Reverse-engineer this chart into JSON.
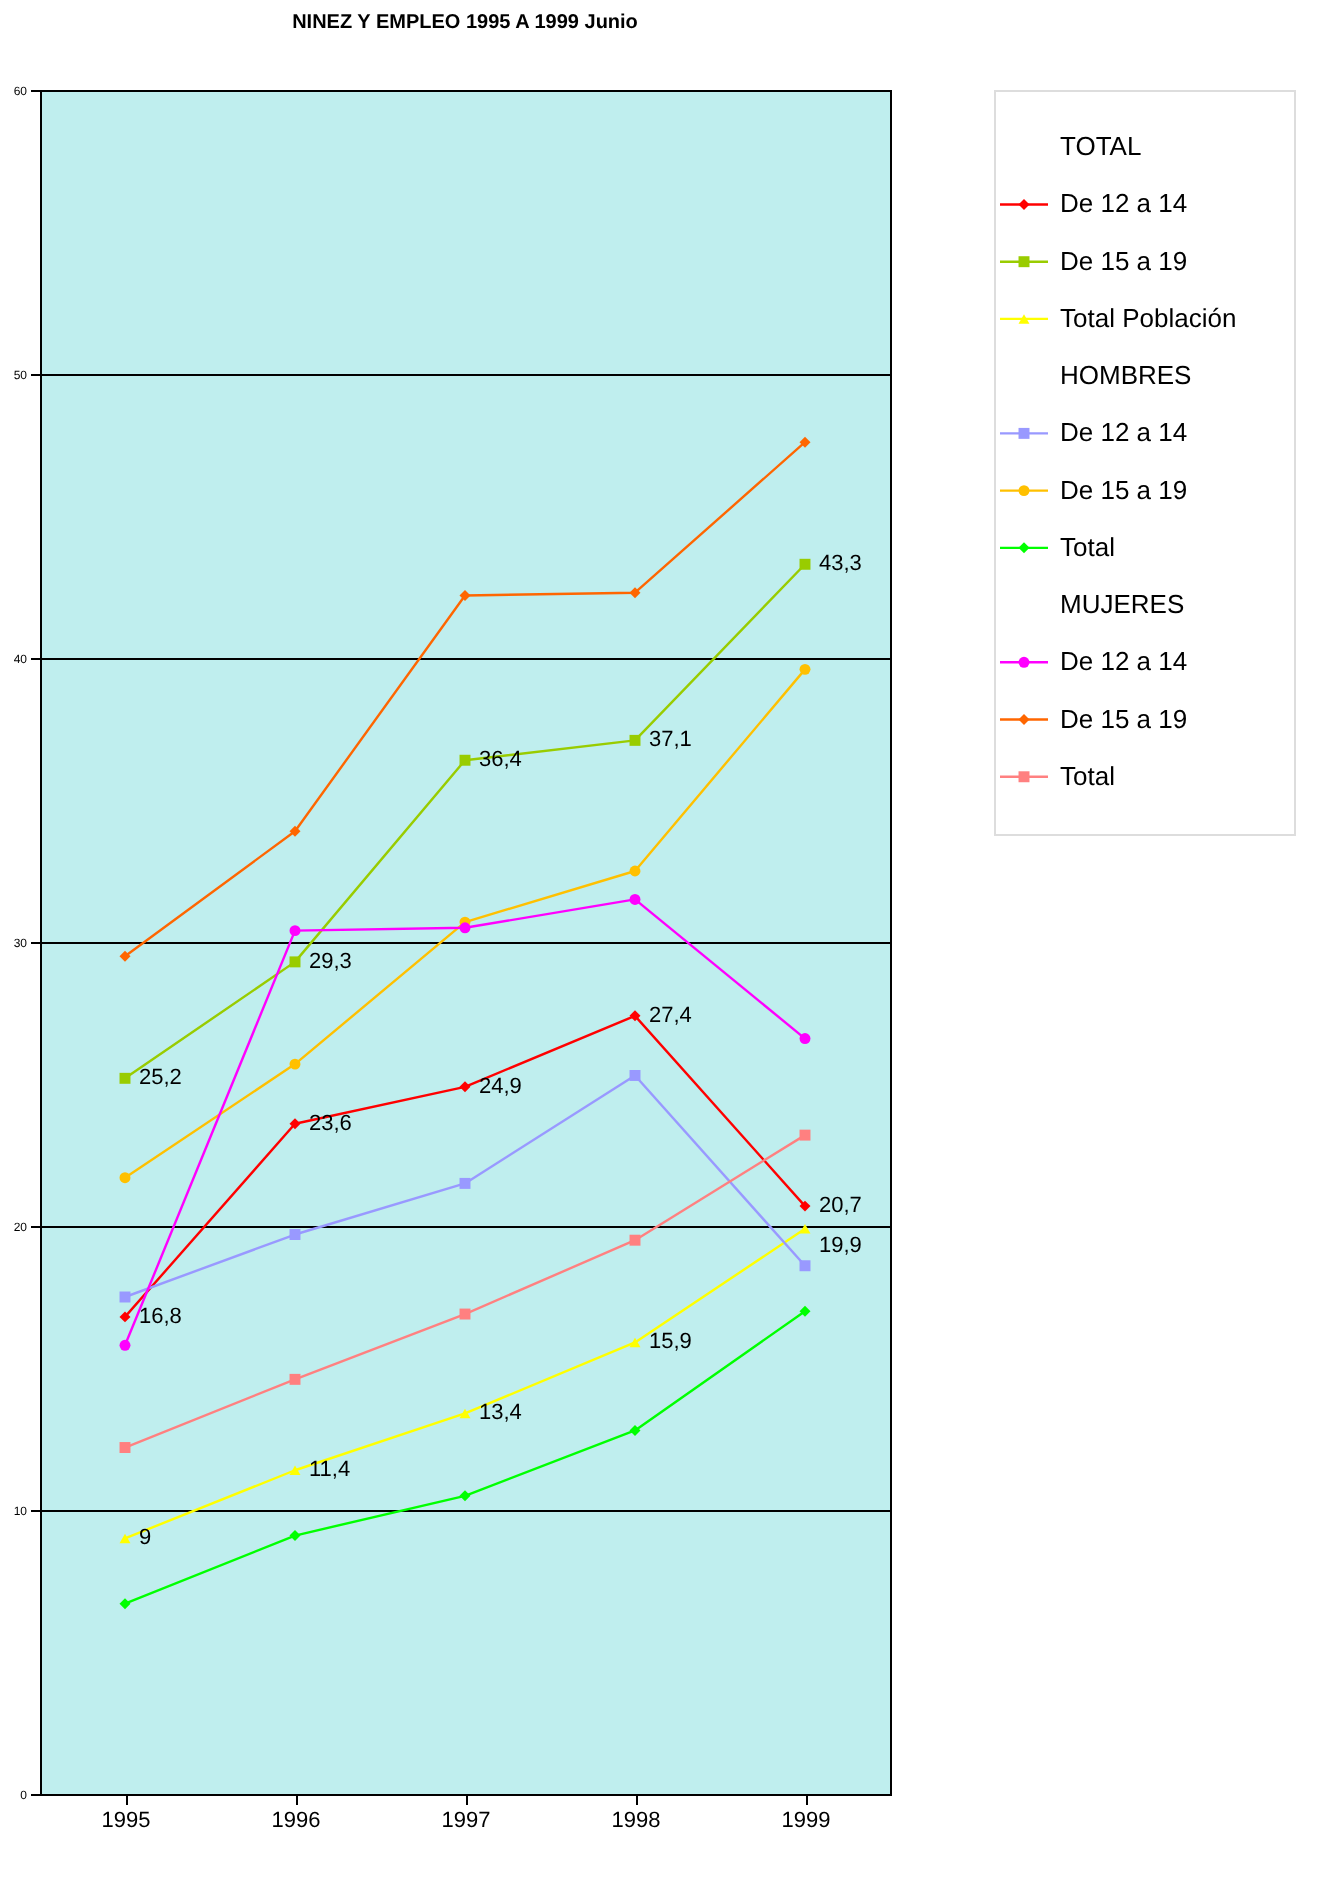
{
  "chart_data": {
    "type": "line",
    "title": "NINEZ Y EMPLEO 1995 A 1999 Junio",
    "categories": [
      "1995",
      "1996",
      "1997",
      "1998",
      "1999"
    ],
    "ylim": [
      0,
      60
    ],
    "yticks": [
      0,
      10,
      20,
      30,
      40,
      50,
      60
    ],
    "grid": "y",
    "legend": "right",
    "line_style": "solid",
    "annotations": [
      "TOTAL",
      "HOMBRES",
      "MUJERES"
    ],
    "series": [
      {
        "name": "De 12 a 14",
        "color": "#ff0000",
        "marker": "diamond",
        "values": [
          16.8,
          23.6,
          24.9,
          27.4,
          20.7
        ],
        "value_labels": [
          "16,8",
          "23,6",
          "24,9",
          "27,4",
          "20,7"
        ]
      },
      {
        "name": "De 15 a 19",
        "color": "#99cc00",
        "marker": "square",
        "values": [
          25.2,
          29.3,
          36.4,
          37.1,
          43.3
        ],
        "value_labels": [
          "25,2",
          "29,3",
          "36,4",
          "37,1",
          "43,3"
        ]
      },
      {
        "name": "Total Población",
        "color": "#ffff00",
        "marker": "triangle",
        "values": [
          9,
          11.4,
          13.4,
          15.9,
          19.9
        ],
        "value_labels": [
          "9",
          "11,4",
          "13,4",
          "15,9",
          "19,9"
        ]
      },
      {
        "name": "De 12 a 14",
        "color": "#9999ff",
        "marker": "square",
        "values": [
          17.5,
          19.7,
          21.5,
          25.3,
          18.6
        ]
      },
      {
        "name": "De 15 a 19",
        "color": "#ffc000",
        "marker": "circle",
        "values": [
          21.7,
          25.7,
          30.7,
          32.5,
          39.6
        ]
      },
      {
        "name": "Total",
        "color": "#00ff00",
        "marker": "diamond",
        "values": [
          6.7,
          9.1,
          10.5,
          12.8,
          17.0
        ]
      },
      {
        "name": "De 12 a 14",
        "color": "#ff00ff",
        "marker": "circle",
        "values": [
          15.8,
          30.4,
          30.5,
          31.5,
          26.6
        ]
      },
      {
        "name": "De 15 a 19",
        "color": "#ff6600",
        "marker": "diamond",
        "values": [
          29.5,
          33.9,
          42.2,
          42.3,
          47.6
        ]
      },
      {
        "name": "Total",
        "color": "#ff8080",
        "marker": "square",
        "values": [
          12.2,
          14.6,
          16.9,
          19.5,
          23.2
        ]
      }
    ]
  }
}
